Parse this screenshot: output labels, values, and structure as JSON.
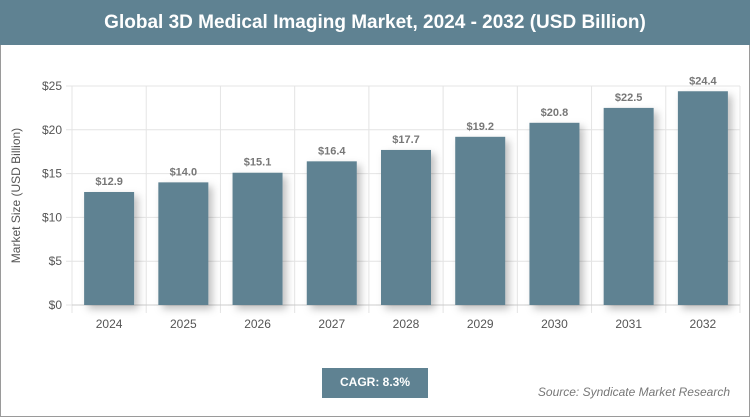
{
  "header": {
    "title": "Global 3D Medical Imaging Market, 2024 - 2032 (USD Billion)"
  },
  "chart_data": {
    "type": "bar",
    "title": "Global 3D Medical Imaging Market, 2024 - 2032 (USD Billion)",
    "xlabel": "",
    "ylabel": "Market Size (USD Billion)",
    "categories": [
      "2024",
      "2025",
      "2026",
      "2027",
      "2028",
      "2029",
      "2030",
      "2031",
      "2032"
    ],
    "values": [
      12.9,
      14.0,
      15.1,
      16.4,
      17.7,
      19.2,
      20.8,
      22.5,
      24.4
    ],
    "data_labels": [
      "$12.9",
      "$14.0",
      "$15.1",
      "$16.4",
      "$17.7",
      "$19.2",
      "$20.8",
      "$22.5",
      "$24.4"
    ],
    "ylim": [
      0,
      25
    ],
    "yticks": [
      0,
      5,
      10,
      15,
      20,
      25
    ],
    "ytick_labels": [
      "$0",
      "$5",
      "$10",
      "$15",
      "$20",
      "$25"
    ],
    "grid": true,
    "bar_color": "#5f8292"
  },
  "footer": {
    "cagr": "CAGR: 8.3%",
    "source": "Source: Syndicate Market Research"
  }
}
